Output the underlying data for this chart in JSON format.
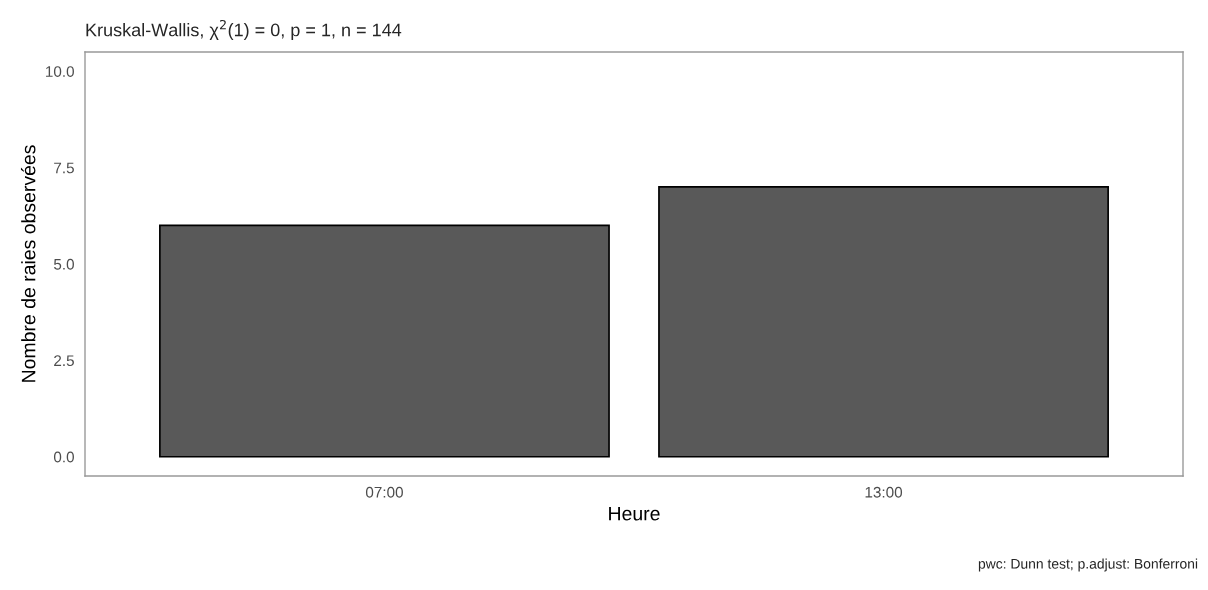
{
  "chart_data": {
    "type": "bar",
    "title": "Kruskal-Wallis, χ$^{2}$(1) = 0, p = 1, n = 144",
    "xlabel": "Heure",
    "ylabel": "Nombre de raies observées",
    "categories": [
      "07:00",
      "13:00"
    ],
    "values": [
      6,
      7
    ],
    "color": "#595959",
    "ylim": [
      -0.5,
      10.5
    ],
    "yticks": [
      {
        "value": 0,
        "label": "0.0"
      },
      {
        "value": 2.5,
        "label": "2.5"
      },
      {
        "value": 5,
        "label": "5.0"
      },
      {
        "value": 7.5,
        "label": "7.5"
      },
      {
        "value": 10,
        "label": "10.0"
      }
    ],
    "grid": false,
    "annotations": [
      "pwc: Dunn test; p.adjust: Bonferroni"
    ]
  }
}
